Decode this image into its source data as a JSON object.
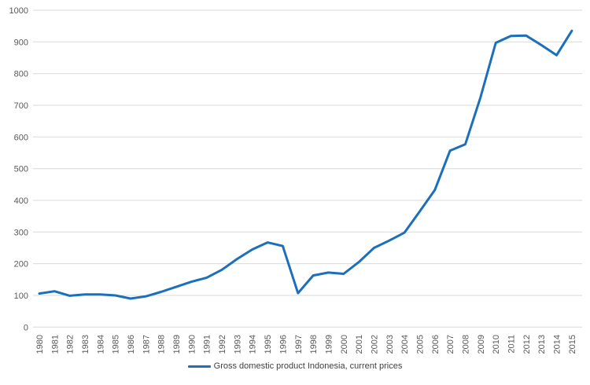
{
  "chart_data": {
    "type": "line",
    "title": "",
    "xlabel": "",
    "ylabel": "",
    "x": [
      1980,
      1981,
      1982,
      1983,
      1984,
      1985,
      1986,
      1987,
      1988,
      1989,
      1990,
      1991,
      1992,
      1993,
      1994,
      1995,
      1996,
      1997,
      1998,
      1999,
      2000,
      2001,
      2002,
      2003,
      2004,
      2005,
      2006,
      2007,
      2008,
      2009,
      2010,
      2011,
      2012,
      2013,
      2014,
      2015
    ],
    "series": [
      {
        "name": "Gross domestic product Indonesia, current prices",
        "values": [
          106,
          113,
          99,
          103,
          103,
          100,
          90,
          97,
          111,
          127,
          143,
          156,
          181,
          215,
          245,
          267,
          256,
          107,
          163,
          172,
          168,
          205,
          250,
          273,
          298,
          365,
          433,
          557,
          577,
          725,
          897,
          919,
          920,
          890,
          858,
          935
        ]
      }
    ],
    "ylim": [
      0,
      1000
    ],
    "ytick_step": 100,
    "yticks": [
      0,
      100,
      200,
      300,
      400,
      500,
      600,
      700,
      800,
      900,
      1000
    ],
    "grid": "horizontal",
    "legend_position": "bottom",
    "colors": {
      "line": "#1c6fba",
      "grid": "#d9d9d9",
      "tick_label": "#595959",
      "legend_text": "#404040"
    }
  },
  "legend": {
    "label": "Gross domestic product Indonesia, current prices"
  }
}
